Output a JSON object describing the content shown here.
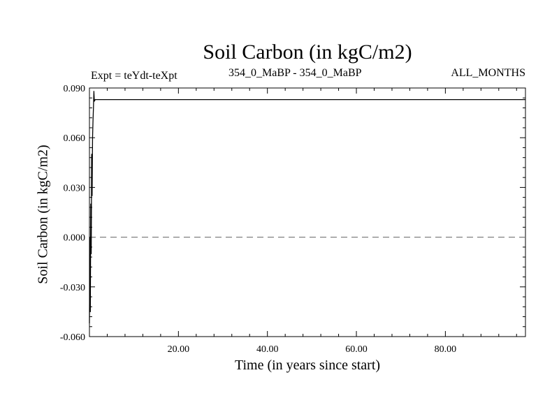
{
  "chart_data": {
    "type": "line",
    "title": "Soil Carbon (in kgC/m2)",
    "experiment_label": "Expt = teYdt-teXpt",
    "period_label": "354_0_MaBP - 354_0_MaBP",
    "months_label": "ALL_MONTHS",
    "xlabel": "Time (in years since start)",
    "ylabel": "Soil Carbon (in kgC/m2)",
    "xlim": [
      0,
      98
    ],
    "ylim": [
      -0.06,
      0.09
    ],
    "x_ticks": [
      20,
      40,
      60,
      80
    ],
    "x_tick_labels": [
      "20.00",
      "40.00",
      "60.00",
      "80.00"
    ],
    "y_ticks": [
      -0.06,
      -0.03,
      0,
      0.03,
      0.06,
      0.09
    ],
    "y_tick_labels": [
      "-0.060",
      "-0.030",
      "0.000",
      "0.030",
      "0.060",
      "0.090"
    ],
    "zero_line": {
      "y": 0,
      "style": "dashed",
      "color": "#808080"
    },
    "series": [
      {
        "color": "#000000",
        "x": [
          0.0,
          0.1,
          0.2,
          0.3,
          0.4,
          0.5,
          0.6,
          0.7,
          0.8,
          0.9,
          1.0,
          1.1,
          1.3,
          1.5,
          2,
          5,
          10,
          20,
          30,
          40,
          50,
          60,
          70,
          80,
          90,
          98
        ],
        "y": [
          -0.052,
          0.0,
          -0.045,
          0.02,
          -0.01,
          0.05,
          0.025,
          0.06,
          0.07,
          0.078,
          0.088,
          0.082,
          0.083,
          0.083,
          0.083,
          0.083,
          0.083,
          0.083,
          0.083,
          0.083,
          0.083,
          0.083,
          0.083,
          0.083,
          0.083,
          0.083
        ]
      }
    ]
  }
}
